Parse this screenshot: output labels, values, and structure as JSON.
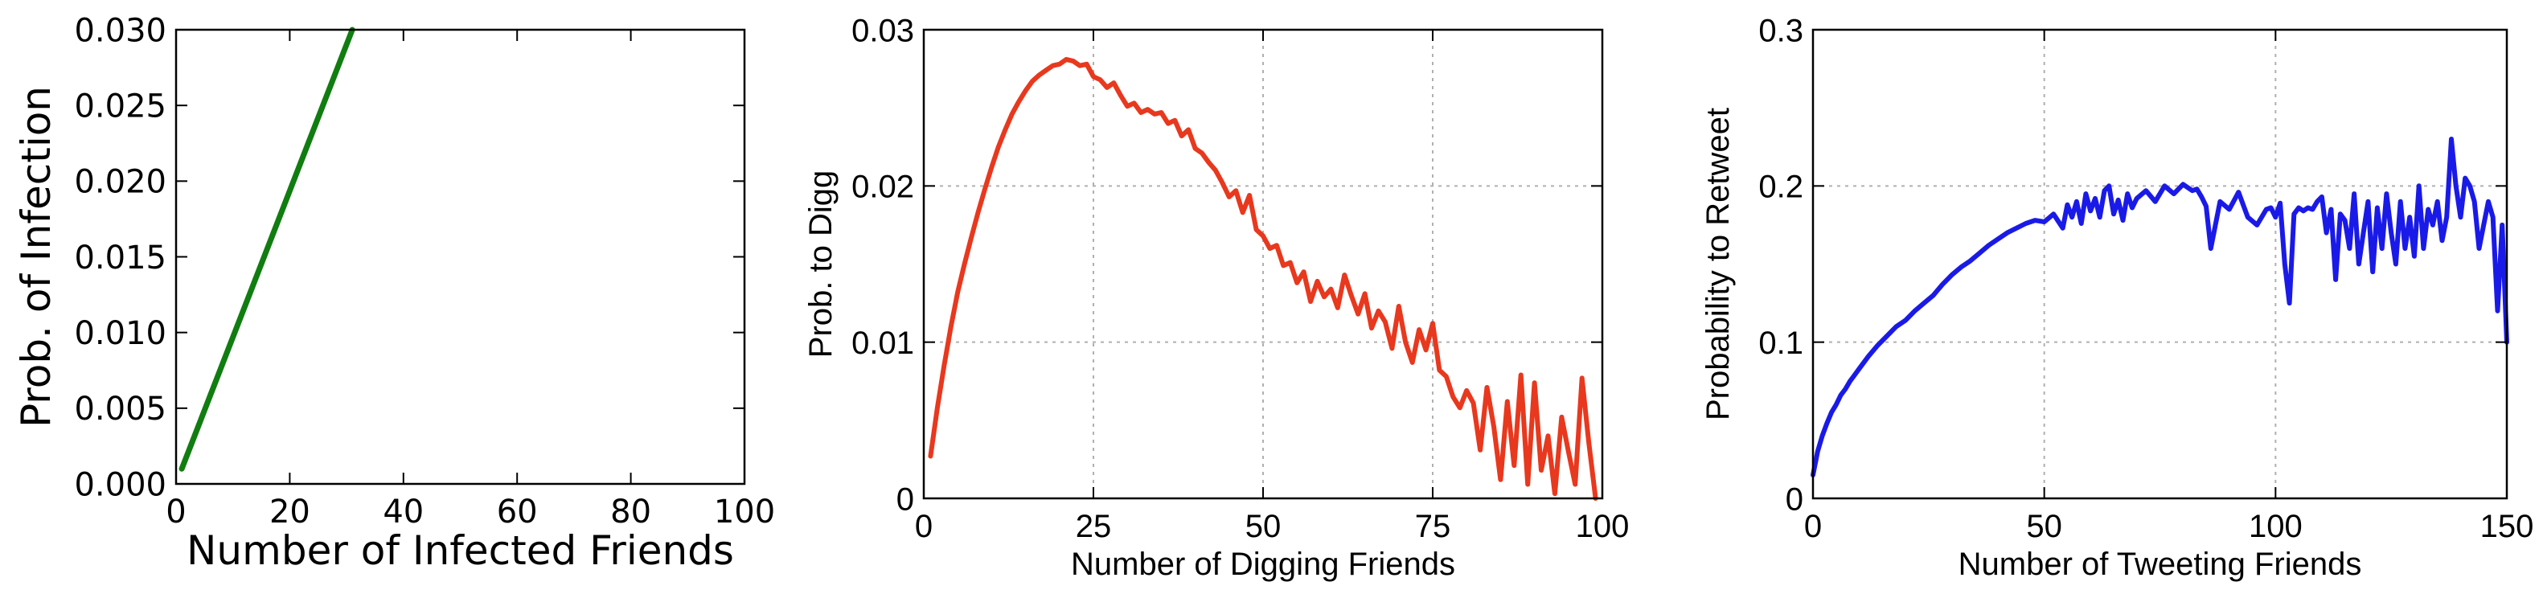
{
  "chart_data": [
    {
      "type": "line",
      "title": "",
      "xlabel": "Number of Infected Friends",
      "ylabel": "Prob. of Infection",
      "xlim": [
        0,
        100
      ],
      "ylim": [
        0,
        0.03
      ],
      "grid": false,
      "x_ticks": [
        "0",
        "20",
        "40",
        "60",
        "80",
        "100"
      ],
      "y_ticks": [
        "0.000",
        "0.005",
        "0.010",
        "0.015",
        "0.020",
        "0.025",
        "0.030"
      ],
      "colors": {
        "line": "#107d10"
      },
      "x": [
        1,
        31
      ],
      "y": [
        0.001,
        0.03
      ]
    },
    {
      "type": "line",
      "title": "",
      "xlabel": "Number of Digging Friends",
      "ylabel": "Prob. to Digg",
      "xlim": [
        0,
        100
      ],
      "ylim": [
        0,
        0.03
      ],
      "grid": true,
      "x_ticks": [
        "0",
        "25",
        "50",
        "75",
        "100"
      ],
      "y_ticks": [
        "0",
        "0.01",
        "0.02",
        "0.03"
      ],
      "colors": {
        "line": "#e8381e"
      },
      "x": [
        1,
        2,
        3,
        4,
        5,
        6,
        7,
        8,
        9,
        10,
        11,
        12,
        13,
        14,
        15,
        16,
        17,
        18,
        19,
        20,
        21,
        22,
        23,
        24,
        25,
        26,
        27,
        28,
        29,
        30,
        31,
        32,
        33,
        34,
        35,
        36,
        37,
        38,
        39,
        40,
        41,
        42,
        43,
        44,
        45,
        46,
        47,
        48,
        49,
        50,
        51,
        52,
        53,
        54,
        55,
        56,
        57,
        58,
        59,
        60,
        61,
        62,
        63,
        64,
        65,
        66,
        67,
        68,
        69,
        70,
        71,
        72,
        73,
        74,
        75,
        76,
        77,
        78,
        79,
        80,
        81,
        82,
        83,
        84,
        85,
        86,
        87,
        88,
        89,
        90,
        91,
        92,
        93,
        94,
        95,
        96,
        97,
        98,
        99
      ],
      "y": [
        0.0027,
        0.0058,
        0.0085,
        0.011,
        0.0132,
        0.015,
        0.0167,
        0.0183,
        0.0198,
        0.0212,
        0.0225,
        0.0236,
        0.0246,
        0.0254,
        0.0261,
        0.0267,
        0.0271,
        0.0274,
        0.0277,
        0.0278,
        0.0281,
        0.028,
        0.0277,
        0.0278,
        0.027,
        0.0268,
        0.0263,
        0.0266,
        0.0258,
        0.0251,
        0.0253,
        0.0247,
        0.0249,
        0.0246,
        0.0247,
        0.024,
        0.0242,
        0.0232,
        0.0236,
        0.0224,
        0.0221,
        0.0215,
        0.021,
        0.0202,
        0.0193,
        0.0197,
        0.0183,
        0.0194,
        0.0172,
        0.0168,
        0.016,
        0.0162,
        0.0149,
        0.0151,
        0.0138,
        0.0145,
        0.0126,
        0.0139,
        0.0129,
        0.0134,
        0.0122,
        0.0143,
        0.013,
        0.0118,
        0.0131,
        0.0109,
        0.012,
        0.0113,
        0.0096,
        0.0123,
        0.01,
        0.0087,
        0.0108,
        0.0095,
        0.0112,
        0.0082,
        0.0078,
        0.0065,
        0.0058,
        0.0069,
        0.0061,
        0.0031,
        0.0071,
        0.0046,
        0.0012,
        0.0062,
        0.0021,
        0.0079,
        0.0009,
        0.0074,
        0.0018,
        0.004,
        0.0003,
        0.0052,
        0.003,
        0.0009,
        0.0077,
        0.0036,
        0.0
      ]
    },
    {
      "type": "line",
      "title": "",
      "xlabel": "Number of  Tweeting Friends",
      "ylabel": "Probability to Retweet",
      "xlim": [
        0,
        150
      ],
      "ylim": [
        0,
        0.3
      ],
      "grid": true,
      "x_ticks": [
        "0",
        "50",
        "100",
        "150"
      ],
      "y_ticks": [
        "0",
        "0.1",
        "0.2",
        "0.3"
      ],
      "colors": {
        "line": "#1a1ae8"
      },
      "x": [
        0,
        1,
        2,
        3,
        4,
        5,
        6,
        7,
        8,
        9,
        10,
        12,
        14,
        16,
        18,
        20,
        22,
        24,
        26,
        28,
        30,
        32,
        34,
        36,
        38,
        40,
        42,
        44,
        46,
        48,
        50,
        52,
        54,
        55,
        56,
        57,
        58,
        59,
        60,
        61,
        62,
        63,
        64,
        65,
        66,
        67,
        68,
        69,
        70,
        72,
        74,
        76,
        78,
        80,
        82,
        83,
        84,
        85,
        86,
        88,
        90,
        92,
        94,
        96,
        98,
        99,
        100,
        101,
        102,
        103,
        104,
        105,
        106,
        107,
        108,
        109,
        110,
        111,
        112,
        113,
        114,
        115,
        116,
        117,
        118,
        119,
        120,
        121,
        122,
        123,
        124,
        125,
        126,
        127,
        128,
        129,
        130,
        131,
        132,
        133,
        134,
        135,
        136,
        137,
        138,
        139,
        140,
        141,
        142,
        143,
        144,
        145,
        146,
        147,
        148,
        149,
        150
      ],
      "y": [
        0.015,
        0.03,
        0.04,
        0.048,
        0.055,
        0.06,
        0.066,
        0.07,
        0.075,
        0.079,
        0.083,
        0.091,
        0.098,
        0.104,
        0.11,
        0.114,
        0.12,
        0.125,
        0.13,
        0.137,
        0.143,
        0.148,
        0.152,
        0.157,
        0.162,
        0.166,
        0.17,
        0.173,
        0.176,
        0.178,
        0.177,
        0.182,
        0.173,
        0.188,
        0.18,
        0.19,
        0.176,
        0.195,
        0.184,
        0.192,
        0.18,
        0.197,
        0.2,
        0.182,
        0.191,
        0.178,
        0.195,
        0.186,
        0.192,
        0.197,
        0.19,
        0.2,
        0.195,
        0.201,
        0.197,
        0.198,
        0.193,
        0.187,
        0.16,
        0.19,
        0.185,
        0.196,
        0.18,
        0.175,
        0.185,
        0.186,
        0.18,
        0.189,
        0.15,
        0.125,
        0.182,
        0.186,
        0.184,
        0.186,
        0.185,
        0.19,
        0.193,
        0.17,
        0.185,
        0.14,
        0.182,
        0.178,
        0.16,
        0.195,
        0.15,
        0.17,
        0.19,
        0.145,
        0.186,
        0.16,
        0.195,
        0.17,
        0.15,
        0.19,
        0.16,
        0.18,
        0.155,
        0.2,
        0.16,
        0.185,
        0.175,
        0.19,
        0.165,
        0.18,
        0.23,
        0.2,
        0.18,
        0.205,
        0.2,
        0.19,
        0.16,
        0.175,
        0.19,
        0.18,
        0.12,
        0.175,
        0.1
      ]
    }
  ]
}
